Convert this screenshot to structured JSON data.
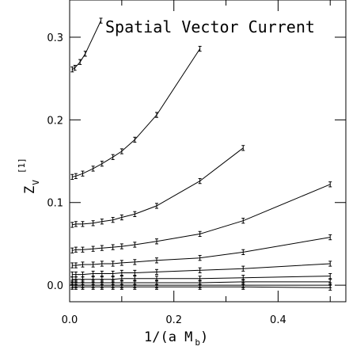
{
  "chart_data": {
    "type": "line",
    "title": "Spatial Vector Current",
    "xlabel": "1/(a M",
    "xlabel_sub": "b",
    "xlabel_close": ")",
    "ylabel": "Z",
    "ylabel_sub": "V",
    "ylabel_sup": "[1]",
    "xlim": [
      0.0,
      0.53
    ],
    "ylim": [
      -0.02,
      0.345
    ],
    "x_ticks": [
      0.0,
      0.2,
      0.4
    ],
    "x_tick_labels": [
      "0.0",
      "0.2",
      "0.4"
    ],
    "y_ticks": [
      0.0,
      0.1,
      0.2,
      0.3
    ],
    "y_tick_labels": [
      "0.0",
      "0.1",
      "0.2",
      "0.3"
    ],
    "grid": false,
    "legend": "none",
    "series": [
      {
        "x": [
          0.005,
          0.01,
          0.02,
          0.03,
          0.06
        ],
        "y": [
          0.261,
          0.263,
          0.27,
          0.28,
          0.32
        ],
        "err": 0.003
      },
      {
        "x": [
          0.005,
          0.012,
          0.025,
          0.045,
          0.062,
          0.083,
          0.1,
          0.125,
          0.167,
          0.25
        ],
        "y": [
          0.131,
          0.132,
          0.135,
          0.141,
          0.147,
          0.155,
          0.162,
          0.176,
          0.206,
          0.286
        ],
        "err": 0.003
      },
      {
        "x": [
          0.005,
          0.012,
          0.025,
          0.045,
          0.062,
          0.083,
          0.1,
          0.125,
          0.167,
          0.25,
          0.333
        ],
        "y": [
          0.073,
          0.074,
          0.074,
          0.075,
          0.077,
          0.079,
          0.082,
          0.086,
          0.096,
          0.126,
          0.166
        ],
        "err": 0.003
      },
      {
        "x": [
          0.005,
          0.012,
          0.025,
          0.045,
          0.062,
          0.083,
          0.1,
          0.125,
          0.167,
          0.25,
          0.333,
          0.5
        ],
        "y": [
          0.042,
          0.043,
          0.043,
          0.044,
          0.045,
          0.046,
          0.047,
          0.049,
          0.053,
          0.062,
          0.078,
          0.122
        ],
        "err": 0.003
      },
      {
        "x": [
          0.005,
          0.012,
          0.025,
          0.045,
          0.062,
          0.083,
          0.1,
          0.125,
          0.167,
          0.25,
          0.333,
          0.5
        ],
        "y": [
          0.024,
          0.024,
          0.025,
          0.025,
          0.026,
          0.026,
          0.027,
          0.028,
          0.03,
          0.033,
          0.04,
          0.058
        ],
        "err": 0.003
      },
      {
        "x": [
          0.005,
          0.012,
          0.025,
          0.045,
          0.062,
          0.083,
          0.1,
          0.125,
          0.167,
          0.25,
          0.333,
          0.5
        ],
        "y": [
          0.013,
          0.013,
          0.013,
          0.014,
          0.014,
          0.014,
          0.015,
          0.015,
          0.016,
          0.018,
          0.02,
          0.026
        ],
        "err": 0.003
      },
      {
        "x": [
          0.005,
          0.012,
          0.025,
          0.045,
          0.062,
          0.083,
          0.1,
          0.125,
          0.167,
          0.25,
          0.333,
          0.5
        ],
        "y": [
          0.007,
          0.007,
          0.007,
          0.007,
          0.007,
          0.007,
          0.008,
          0.008,
          0.008,
          0.008,
          0.009,
          0.011
        ],
        "err": 0.003
      },
      {
        "x": [
          0.005,
          0.012,
          0.025,
          0.045,
          0.062,
          0.083,
          0.1,
          0.125,
          0.167,
          0.25,
          0.333,
          0.5
        ],
        "y": [
          0.003,
          0.003,
          0.003,
          0.003,
          0.003,
          0.003,
          0.003,
          0.003,
          0.003,
          0.003,
          0.004,
          0.004
        ],
        "err": 0.003
      },
      {
        "x": [
          0.005,
          0.012,
          0.025,
          0.045,
          0.062,
          0.083,
          0.1,
          0.125,
          0.167,
          0.25,
          0.333,
          0.5
        ],
        "y": [
          0.0,
          0.0,
          0.0,
          0.0,
          0.0,
          0.0,
          0.0,
          0.0,
          0.0,
          0.0,
          0.0,
          0.0
        ],
        "err": 0.003
      },
      {
        "x": [
          0.005,
          0.012,
          0.025,
          0.045,
          0.062,
          0.083,
          0.1,
          0.125,
          0.167,
          0.25,
          0.333,
          0.5
        ],
        "y": [
          -0.002,
          -0.002,
          -0.002,
          -0.002,
          -0.002,
          -0.002,
          -0.002,
          -0.002,
          -0.002,
          -0.002,
          -0.002,
          -0.003
        ],
        "err": 0.003
      }
    ]
  }
}
